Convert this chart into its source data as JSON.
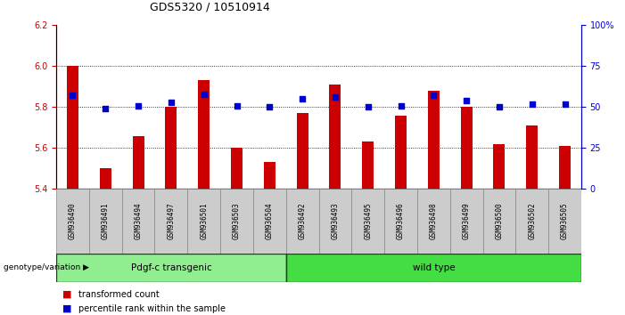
{
  "title": "GDS5320 / 10510914",
  "categories": [
    "GSM936490",
    "GSM936491",
    "GSM936494",
    "GSM936497",
    "GSM936501",
    "GSM936503",
    "GSM936504",
    "GSM936492",
    "GSM936493",
    "GSM936495",
    "GSM936496",
    "GSM936498",
    "GSM936499",
    "GSM936500",
    "GSM936502",
    "GSM936505"
  ],
  "bar_values": [
    6.0,
    5.5,
    5.66,
    5.8,
    5.93,
    5.6,
    5.53,
    5.77,
    5.91,
    5.63,
    5.76,
    5.88,
    5.8,
    5.62,
    5.71,
    5.61
  ],
  "dot_values": [
    57,
    49,
    51,
    53,
    58,
    51,
    50,
    55,
    56,
    50,
    51,
    57,
    54,
    50,
    52,
    52
  ],
  "bar_color": "#cc0000",
  "dot_color": "#0000cc",
  "ylim_left": [
    5.4,
    6.2
  ],
  "ylim_right": [
    0,
    100
  ],
  "yticks_left": [
    5.4,
    5.6,
    5.8,
    6.0,
    6.2
  ],
  "ytick_labels_right": [
    "0",
    "25",
    "50",
    "75",
    "100%"
  ],
  "ytick_vals_right": [
    0,
    25,
    50,
    75,
    100
  ],
  "group1_label": "Pdgf-c transgenic",
  "group2_label": "wild type",
  "group1_count": 7,
  "group2_count": 9,
  "genotype_label": "genotype/variation",
  "legend_bar": "transformed count",
  "legend_dot": "percentile rank within the sample",
  "group1_color": "#90ee90",
  "group2_color": "#44dd44",
  "bar_width": 0.35,
  "background_color": "#ffffff",
  "title_fontsize": 9,
  "tick_fontsize": 7,
  "dotgrid_color": "#555555"
}
